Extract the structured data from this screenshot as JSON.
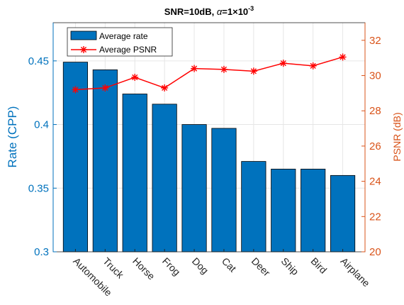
{
  "chart_data": {
    "type": "bar+line",
    "title_main": "SNR=10dB, ",
    "title_alpha": "α",
    "title_eq": "=1",
    "title_times": "×10",
    "title_exp": "-3",
    "categories": [
      "Automobile",
      "Truck",
      "Horse",
      "Frog",
      "Dog",
      "Cat",
      "Deer",
      "Ship",
      "Bird",
      "Airplane"
    ],
    "series": [
      {
        "name": "Average rate",
        "type": "bar",
        "axis": "left",
        "color": "#0072BD",
        "values": [
          0.449,
          0.443,
          0.424,
          0.416,
          0.4,
          0.397,
          0.371,
          0.365,
          0.365,
          0.36
        ]
      },
      {
        "name": "Average PSNR",
        "type": "line",
        "axis": "right",
        "color": "#FF0000",
        "marker": "asterisk",
        "values": [
          29.2,
          29.3,
          29.9,
          29.3,
          30.4,
          30.35,
          30.25,
          30.7,
          30.55,
          31.05
        ]
      }
    ],
    "ylabel_left": "Rate (CPP)",
    "ylim_left": [
      0.3,
      0.48
    ],
    "yticks_left": [
      0.3,
      0.35,
      0.4,
      0.45
    ],
    "ytick_labels_left": [
      "0.3",
      "0.35",
      "0.4",
      "0.45"
    ],
    "ylabel_right": "PSNR (dB)",
    "ylim_right": [
      20,
      33
    ],
    "yticks_right": [
      20,
      22,
      24,
      26,
      28,
      30,
      32
    ],
    "ytick_labels_right": [
      "20",
      "22",
      "24",
      "26",
      "28",
      "30",
      "32"
    ],
    "grid": true,
    "legend_position": "top-left",
    "left_axis_color": "#0072BD",
    "right_axis_color": "#D95319"
  }
}
